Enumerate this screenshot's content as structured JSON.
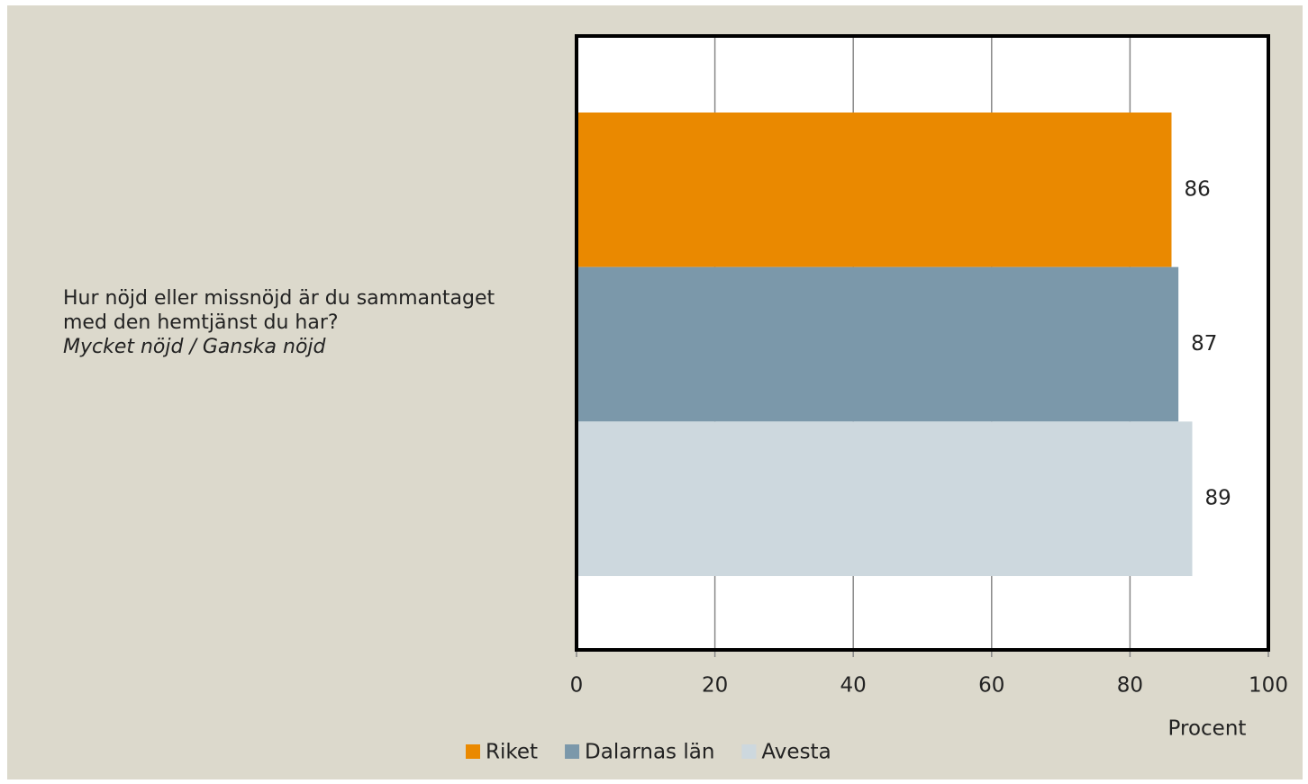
{
  "chart_data": {
    "type": "bar",
    "orientation": "horizontal",
    "categories": [
      "Hur nöjd eller missnöjd är du sammantaget med den hemtjänst du har?"
    ],
    "category_note": "Mycket nöjd / Ganska nöjd",
    "series": [
      {
        "name": "Riket",
        "color": "#ea8900",
        "values": [
          86
        ]
      },
      {
        "name": "Dalarnas län",
        "color": "#7b98aa",
        "values": [
          87
        ]
      },
      {
        "name": "Avesta",
        "color": "#cdd8de",
        "values": [
          89
        ]
      }
    ],
    "xlabel": "Procent",
    "xlim": [
      0,
      100
    ],
    "xticks": [
      0,
      20,
      40,
      60,
      80,
      100
    ],
    "grid": true,
    "legend": "bottom"
  }
}
